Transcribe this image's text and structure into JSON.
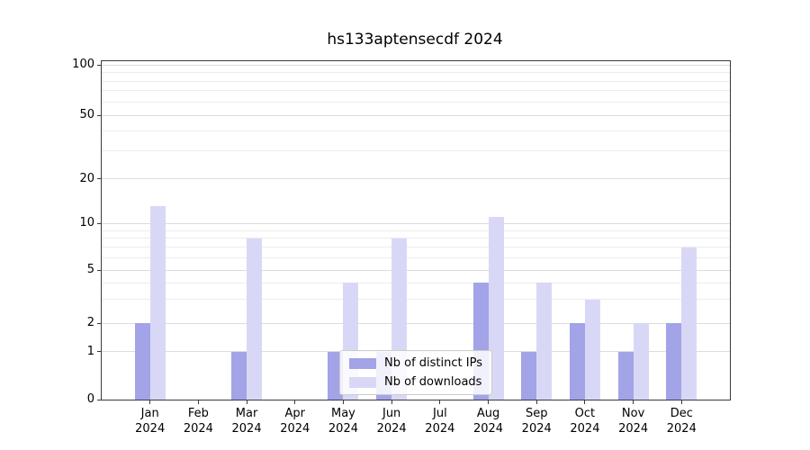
{
  "chart_data": {
    "type": "bar",
    "title": "hs133aptensecdf 2024",
    "categories": [
      "Jan",
      "Feb",
      "Mar",
      "Apr",
      "May",
      "Jun",
      "Jul",
      "Aug",
      "Sep",
      "Oct",
      "Nov",
      "Dec"
    ],
    "year_label": "2024",
    "series": [
      {
        "name": "Nb of distinct IPs",
        "color": "#a3a3e8",
        "values": [
          2,
          0,
          1,
          0,
          1,
          1,
          0,
          4,
          1,
          2,
          1,
          2
        ]
      },
      {
        "name": "Nb of downloads",
        "color": "#d8d8f6",
        "values": [
          13,
          0,
          8,
          0,
          4,
          8,
          0,
          11,
          4,
          3,
          2,
          7
        ]
      }
    ],
    "yscale": "symlog",
    "ylim": [
      0,
      100
    ],
    "y_major_ticks": [
      0,
      1,
      2,
      5,
      10,
      20,
      50,
      100
    ],
    "y_minor_ticks": [
      3,
      4,
      6,
      7,
      8,
      9,
      30,
      40,
      60,
      70,
      80,
      90
    ],
    "grid": true,
    "legend_position": "lower center"
  },
  "style": {
    "grid_major_color": "#dcdcdc",
    "grid_minor_color": "#ececec",
    "spine_color": "#3a3a3a",
    "background": "#ffffff",
    "text_color": "#000000"
  }
}
